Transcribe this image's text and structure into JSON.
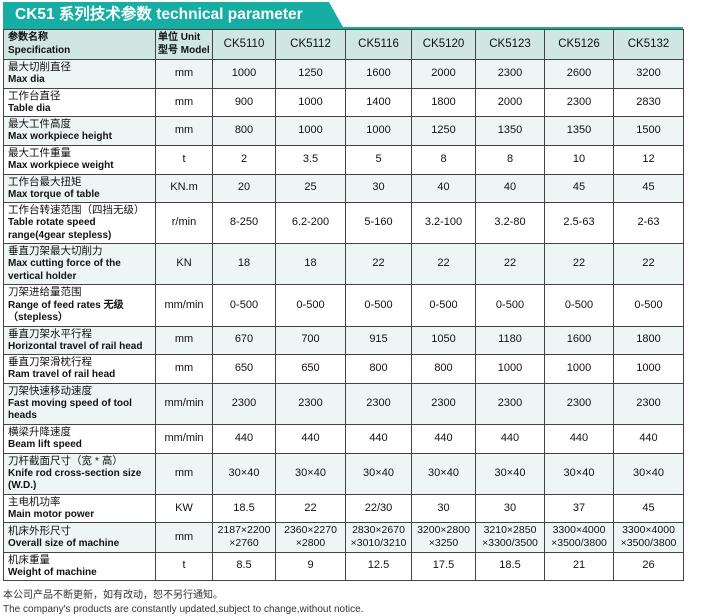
{
  "title": "CK51 系列技术参数 technical parameter",
  "header": {
    "spec_cn": "参数名称",
    "spec_en": "Specification",
    "unit_label": "单位 Unit",
    "model_label": "型号 Model",
    "models": [
      "CK5110",
      "CK5112",
      "CK5116",
      "CK5120",
      "CK5123",
      "CK5126",
      "CK5132"
    ]
  },
  "rows": [
    {
      "cn": "最大切削直径",
      "en": "Max dia",
      "unit": "mm",
      "values": [
        "1000",
        "1250",
        "1600",
        "2000",
        "2300",
        "2600",
        "3200"
      ]
    },
    {
      "cn": "工作台直径",
      "en": "Table dia",
      "unit": "mm",
      "values": [
        "900",
        "1000",
        "1400",
        "1800",
        "2000",
        "2300",
        "2830"
      ]
    },
    {
      "cn": "最大工件高度",
      "en": "Max workpiece height",
      "unit": "mm",
      "values": [
        "800",
        "1000",
        "1000",
        "1250",
        "1350",
        "1350",
        "1500"
      ]
    },
    {
      "cn": "最大工件重量",
      "en": "Max workpiece weight",
      "unit": "t",
      "values": [
        "2",
        "3.5",
        "5",
        "8",
        "8",
        "10",
        "12"
      ]
    },
    {
      "cn": "工作台最大扭矩",
      "en": "Max torque of table",
      "unit": "KN.m",
      "values": [
        "20",
        "25",
        "30",
        "40",
        "40",
        "45",
        "45"
      ]
    },
    {
      "cn": "工作台转速范围（四挡无级）",
      "en": "Table rotate speed range(4gear stepless)",
      "unit": "r/min",
      "values": [
        "8-250",
        "6.2-200",
        "5-160",
        "3.2-100",
        "3.2-80",
        "2.5-63",
        "2-63"
      ]
    },
    {
      "cn": "垂直刀架最大切削力",
      "en": "Max cutting force of the vertical holder",
      "unit": "KN",
      "values": [
        "18",
        "18",
        "22",
        "22",
        "22",
        "22",
        "22"
      ]
    },
    {
      "cn": "刀架进给量范围",
      "en": "Range of feed rates 无级（stepless）",
      "unit": "mm/min",
      "values": [
        "0-500",
        "0-500",
        "0-500",
        "0-500",
        "0-500",
        "0-500",
        "0-500"
      ]
    },
    {
      "cn": "垂直刀架水平行程",
      "en": "Horizontal travel of rail head",
      "unit": "mm",
      "values": [
        "670",
        "700",
        "915",
        "1050",
        "1180",
        "1600",
        "1800"
      ]
    },
    {
      "cn": "垂直刀架滑枕行程",
      "en": "Ram travel of rail head",
      "unit": "mm",
      "values": [
        "650",
        "650",
        "800",
        "800",
        "1000",
        "1000",
        "1000"
      ]
    },
    {
      "cn": "刀架快速移动速度",
      "en": "Fast moving speed of tool heads",
      "unit": "mm/min",
      "values": [
        "2300",
        "2300",
        "2300",
        "2300",
        "2300",
        "2300",
        "2300"
      ]
    },
    {
      "cn": "横梁升降速度",
      "en": "Beam lift speed",
      "unit": "mm/min",
      "values": [
        "440",
        "440",
        "440",
        "440",
        "440",
        "440",
        "440"
      ]
    },
    {
      "cn": "刀杆截面尺寸（宽 * 高）",
      "en": "Knife rod cross-section size (W.D.)",
      "unit": "mm",
      "values": [
        "30×40",
        "30×40",
        "30×40",
        "30×40",
        "30×40",
        "30×40",
        "30×40"
      ]
    },
    {
      "cn": "主电机功率",
      "en": "Main motor power",
      "unit": "KW",
      "values": [
        "18.5",
        "22",
        "22/30",
        "30",
        "30",
        "37",
        "45"
      ]
    },
    {
      "cn": "机床外形尺寸",
      "en": "Overall size of machine",
      "unit": "mm",
      "values": [
        "2187×2200 ×2760",
        "2360×2270 ×2800",
        "2830×2670 ×3010/3210",
        "3200×2800 ×3250",
        "3210×2850 ×3300/3500",
        "3300×4000 ×3500/3800",
        "3300×4000 ×3500/3800"
      ]
    },
    {
      "cn": "机床重量",
      "en": "Weight of machine",
      "unit": "t",
      "values": [
        "8.5",
        "9",
        "12.5",
        "17.5",
        "18.5",
        "21",
        "26"
      ]
    }
  ],
  "notes": [
    "本公司产品不断更新，如有改动，恕不另行通知。",
    "The company's products are constantly updated,subject to change,without notice."
  ],
  "colors": {
    "accent": "#16ada3",
    "header_bg": "#cfe6e3",
    "row_alt": "#eef6f5"
  }
}
